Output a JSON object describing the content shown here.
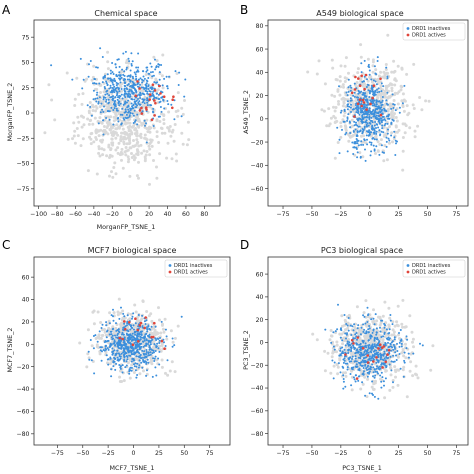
{
  "colors": {
    "background": "#d9d9d9",
    "inactive": "#3b8fdc",
    "active": "#e0453a",
    "axis": "#333333"
  },
  "chart_data": [
    {
      "type": "scatter",
      "panel": "A",
      "title": "Chemical space",
      "xlabel": "MorganFP_TSNE_1",
      "ylabel": "MorganFP_TSNE_2",
      "xlim": [
        -105,
        97
      ],
      "ylim": [
        -92,
        92
      ],
      "xticks": [
        -100,
        -80,
        -60,
        -40,
        -20,
        0,
        20,
        40,
        60,
        80
      ],
      "yticks": [
        -75,
        -50,
        -25,
        0,
        25,
        50,
        75
      ],
      "xticklabels": [
        "−100",
        "−80",
        "−60",
        "−40",
        "−20",
        "0",
        "20",
        "40",
        "60",
        "80"
      ],
      "yticklabels": [
        "−75",
        "−50",
        "−25",
        "0",
        "25",
        "50",
        "75"
      ],
      "legend": null,
      "series": [
        {
          "name": "",
          "role": "background",
          "center": [
            -5,
            -5
          ],
          "spread": [
            48,
            42
          ],
          "count": 650
        },
        {
          "name": "",
          "role": "inactive",
          "center": [
            0,
            22
          ],
          "spread": [
            38,
            28
          ],
          "count": 520
        },
        {
          "name": "",
          "role": "active",
          "center": [
            20,
            15
          ],
          "spread": [
            25,
            20
          ],
          "count": 22
        }
      ]
    },
    {
      "type": "scatter",
      "panel": "B",
      "title": "A549 biological space",
      "xlabel": "",
      "ylabel": "A549_TSNE_2",
      "xlim": [
        -88,
        85
      ],
      "ylim": [
        -75,
        85
      ],
      "xticks": [
        -75,
        -50,
        -25,
        0,
        25,
        50,
        75
      ],
      "yticks": [
        -60,
        -40,
        -20,
        0,
        20,
        40,
        60,
        80
      ],
      "xticklabels": [
        "−75",
        "−50",
        "−25",
        "0",
        "25",
        "50",
        "75"
      ],
      "yticklabels": [
        "−60",
        "−40",
        "−20",
        "0",
        "20",
        "40",
        "60",
        "80"
      ],
      "legend": {
        "position": "top-right",
        "entries": [
          "DRD1 inactives",
          "DRD1 actives"
        ]
      },
      "series": [
        {
          "name": "",
          "role": "background",
          "center": [
            0,
            10
          ],
          "spread": [
            30,
            32
          ],
          "count": 550
        },
        {
          "name": "DRD1 inactives",
          "role": "inactive",
          "center": [
            0,
            5
          ],
          "spread": [
            20,
            28
          ],
          "count": 520
        },
        {
          "name": "DRD1 actives",
          "role": "active",
          "center": [
            -5,
            20
          ],
          "spread": [
            15,
            20
          ],
          "count": 20
        }
      ]
    },
    {
      "type": "scatter",
      "panel": "C",
      "title": "MCF7 biological space",
      "xlabel": "MCF7_TSNE_1",
      "ylabel": "MCF7_TSNE_2",
      "xlim": [
        -98,
        95
      ],
      "ylim": [
        -90,
        78
      ],
      "xticks": [
        -75,
        -50,
        -25,
        0,
        25,
        50,
        75
      ],
      "yticks": [
        -80,
        -60,
        -40,
        -20,
        0,
        20,
        40,
        60
      ],
      "xticklabels": [
        "−75",
        "−50",
        "−25",
        "0",
        "25",
        "50",
        "75"
      ],
      "yticklabels": [
        "−80",
        "−60",
        "−40",
        "−20",
        "0",
        "20",
        "40",
        "60"
      ],
      "legend": {
        "position": "top-right",
        "entries": [
          "DRD1 inactives",
          "DRD1 actives"
        ]
      },
      "series": [
        {
          "name": "",
          "role": "background",
          "center": [
            -2,
            2
          ],
          "spread": [
            30,
            24
          ],
          "count": 550
        },
        {
          "name": "DRD1 inactives",
          "role": "inactive",
          "center": [
            -3,
            0
          ],
          "spread": [
            28,
            20
          ],
          "count": 560
        },
        {
          "name": "DRD1 actives",
          "role": "active",
          "center": [
            5,
            10
          ],
          "spread": [
            20,
            15
          ],
          "count": 18
        }
      ]
    },
    {
      "type": "scatter",
      "panel": "D",
      "title": "PC3 biological space",
      "xlabel": "PC3_TSNE_1",
      "ylabel": "PC3_TSNE_2",
      "xlim": [
        -88,
        85
      ],
      "ylim": [
        -90,
        75
      ],
      "xticks": [
        -75,
        -50,
        -25,
        0,
        25,
        50,
        75
      ],
      "yticks": [
        -80,
        -60,
        -40,
        -20,
        0,
        20,
        40,
        60
      ],
      "xticklabels": [
        "−75",
        "−50",
        "−25",
        "0",
        "25",
        "50",
        "75"
      ],
      "yticklabels": [
        "−80",
        "−60",
        "−40",
        "−20",
        "0",
        "20",
        "40",
        "60"
      ],
      "legend": {
        "position": "top-right",
        "entries": [
          "DRD1 inactives",
          "DRD1 actives"
        ]
      },
      "series": [
        {
          "name": "",
          "role": "background",
          "center": [
            0,
            -5
          ],
          "spread": [
            30,
            28
          ],
          "count": 580
        },
        {
          "name": "DRD1 inactives",
          "role": "inactive",
          "center": [
            0,
            -8
          ],
          "spread": [
            26,
            24
          ],
          "count": 520
        },
        {
          "name": "DRD1 actives",
          "role": "active",
          "center": [
            0,
            -10
          ],
          "spread": [
            20,
            18
          ],
          "count": 18
        }
      ]
    }
  ]
}
